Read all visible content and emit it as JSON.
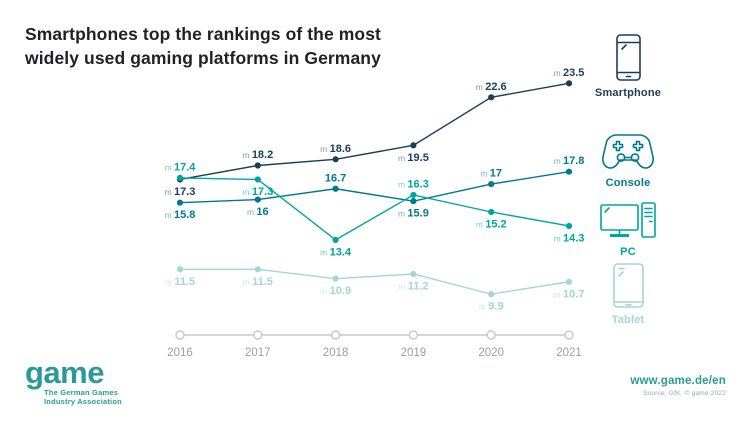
{
  "title_lines": [
    "Smartphones top the rankings of the most",
    "widely used gaming platforms in Germany"
  ],
  "chart_data": {
    "type": "line",
    "x_labels": [
      "2016",
      "2017",
      "2018",
      "2019",
      "2020",
      "2021"
    ],
    "unit_prefix": "m",
    "ylim": [
      9,
      24.5
    ],
    "grid": false,
    "legend_position": "right",
    "axis_color": "#c8c8c8",
    "tick_label_color": "#9aa0a3",
    "series": [
      {
        "name": "Smartphone",
        "color": "#1d3c5c",
        "values": [
          17.3,
          18.2,
          18.6,
          19.5,
          22.6,
          23.5
        ],
        "label_prefix": [
          "m",
          "m",
          "m",
          "m",
          "m",
          "m"
        ],
        "label_side": [
          "below",
          "above",
          "above",
          "below",
          "above",
          "above"
        ]
      },
      {
        "name": "Console",
        "color": "#00798f",
        "values": [
          15.8,
          16,
          16.7,
          15.9,
          17,
          17.8
        ],
        "label_prefix": [
          "m",
          "m",
          "",
          "m",
          "m",
          "m"
        ],
        "label_side": [
          "below",
          "below",
          "above",
          "below",
          "above",
          "above"
        ]
      },
      {
        "name": "PC",
        "color": "#00a5a0",
        "values": [
          17.4,
          17.3,
          13.4,
          16.3,
          15.2,
          14.3
        ],
        "label_prefix": [
          "m",
          "m",
          "m",
          "m",
          "m",
          "m"
        ],
        "label_side": [
          "above",
          "below",
          "below",
          "above",
          "below",
          "below"
        ]
      },
      {
        "name": "Tablet",
        "color": "#a5d6d3",
        "values": [
          11.5,
          11.5,
          10.9,
          11.2,
          9.9,
          10.7
        ],
        "label_prefix": [
          "m",
          "m",
          "m",
          "m",
          "m",
          "m"
        ],
        "label_side": [
          "below",
          "below",
          "below",
          "below",
          "below",
          "below"
        ]
      }
    ]
  },
  "legend": {
    "items": [
      {
        "label": "Smartphone",
        "icon": "smartphone-icon",
        "color": "#1d3c5c"
      },
      {
        "label": "Console",
        "icon": "console-icon",
        "color": "#00798f"
      },
      {
        "label": "PC",
        "icon": "pc-icon",
        "color": "#00a5a0"
      },
      {
        "label": "Tablet",
        "icon": "tablet-icon",
        "color": "#a5d6d3"
      }
    ]
  },
  "footer": {
    "logo_text": "game",
    "logo_subtitle_lines": [
      "The German Games",
      "Industry Association"
    ],
    "logo_color": "#2b9a96",
    "website": "www.game.de/en",
    "source": "Source: GfK. © game 2022"
  }
}
